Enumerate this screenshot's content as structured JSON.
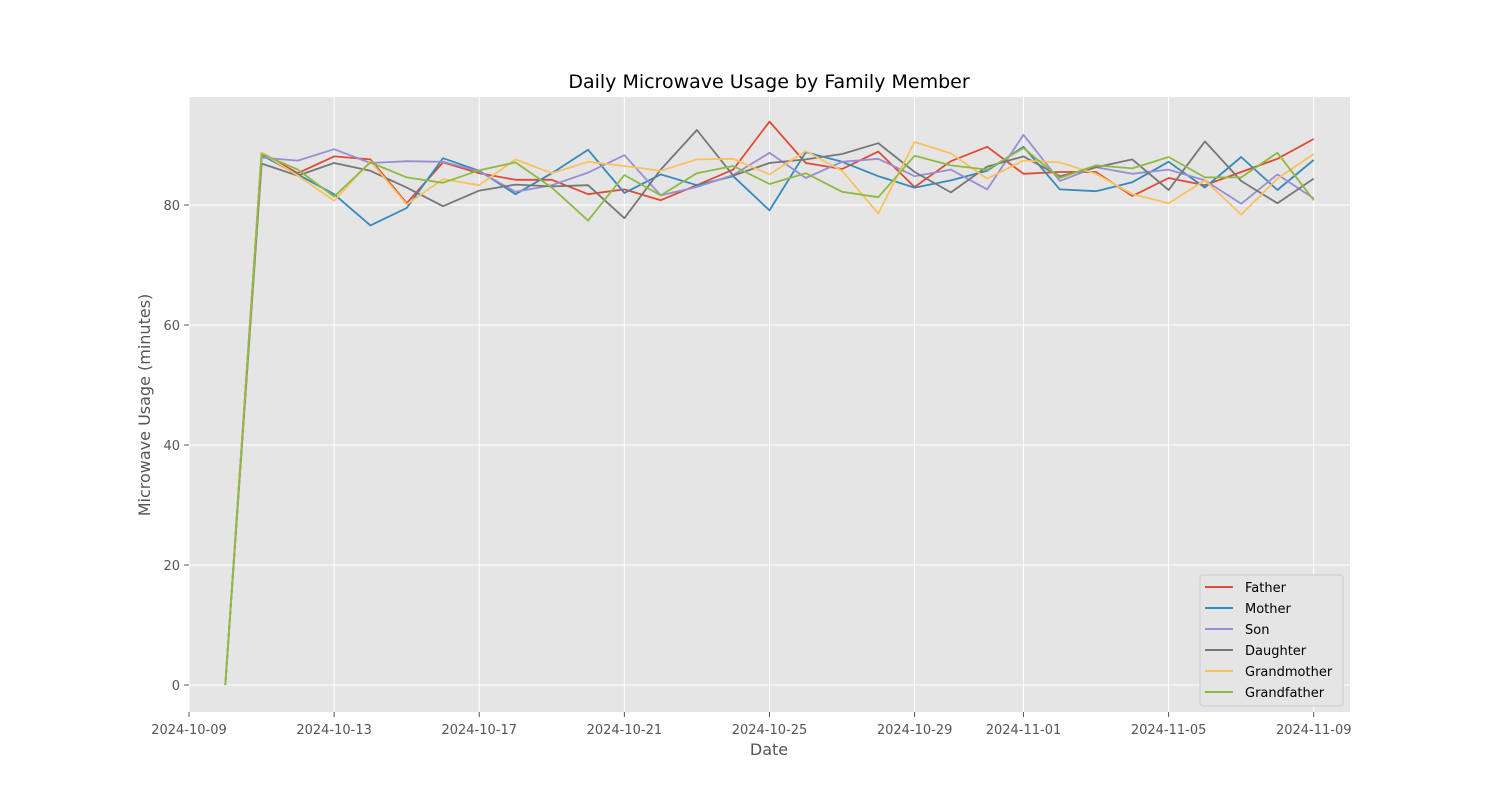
{
  "chart_data": {
    "type": "line",
    "title": "Daily Microwave Usage by Family Member",
    "xlabel": "Date",
    "ylabel": "Microwave Usage (minutes)",
    "xlim": [
      "2024-10-09",
      "2024-11-10"
    ],
    "ylim": [
      -4.5,
      98
    ],
    "x_ticks": [
      "2024-10-09",
      "2024-10-13",
      "2024-10-17",
      "2024-10-21",
      "2024-10-25",
      "2024-10-29",
      "2024-11-01",
      "2024-11-05",
      "2024-11-09"
    ],
    "y_ticks": [
      0,
      20,
      40,
      60,
      80
    ],
    "grid": true,
    "legend_position": "lower right",
    "x": [
      "2024-10-10",
      "2024-10-11",
      "2024-10-12",
      "2024-10-13",
      "2024-10-14",
      "2024-10-15",
      "2024-10-16",
      "2024-10-17",
      "2024-10-18",
      "2024-10-19",
      "2024-10-20",
      "2024-10-21",
      "2024-10-22",
      "2024-10-23",
      "2024-10-24",
      "2024-10-25",
      "2024-10-26",
      "2024-10-27",
      "2024-10-28",
      "2024-10-29",
      "2024-10-30",
      "2024-10-31",
      "2024-11-01",
      "2024-11-02",
      "2024-11-03",
      "2024-11-04",
      "2024-11-05",
      "2024-11-06",
      "2024-11-07",
      "2024-11-08",
      "2024-11-09"
    ],
    "series": [
      {
        "name": "Father",
        "color": "#E24A33",
        "values": [
          0,
          88.7,
          85.3,
          88.1,
          87.6,
          80.3,
          87.1,
          85.3,
          84.2,
          84.2,
          81.8,
          82.6,
          80.8,
          83.3,
          85.9,
          93.9,
          87,
          86,
          88.9,
          83,
          87.3,
          89.7,
          85.2,
          85.5,
          85.5,
          81.5,
          84.5,
          83.3,
          85.5,
          87.7,
          91
        ]
      },
      {
        "name": "Mother",
        "color": "#348ABD",
        "values": [
          0,
          88.3,
          85.1,
          81.8,
          76.6,
          79.5,
          87.8,
          85.7,
          81.8,
          85.3,
          89.2,
          82,
          85.1,
          83.3,
          84.8,
          79.1,
          88.8,
          87.2,
          84.8,
          82.9,
          84.1,
          85.7,
          89.7,
          82.6,
          82.3,
          83.8,
          87.2,
          82.9,
          88,
          82.5,
          87.5
        ]
      },
      {
        "name": "Son",
        "color": "#988ED5",
        "values": [
          0,
          87.9,
          87.4,
          89.3,
          87,
          87.3,
          87.2,
          85.6,
          82.2,
          83.3,
          85.4,
          88.3,
          81.6,
          83,
          85,
          88.7,
          84.5,
          87.2,
          87.7,
          84.8,
          85.9,
          82.6,
          91.7,
          84,
          86.3,
          85.2,
          85.9,
          84.1,
          80.2,
          85.1,
          81.1
        ]
      },
      {
        "name": "Daughter",
        "color": "#777777",
        "values": [
          0,
          86.9,
          84.9,
          87,
          85.7,
          82.9,
          79.8,
          82.4,
          83.4,
          83.1,
          83.3,
          77.8,
          85.9,
          92.5,
          84.9,
          87,
          87.6,
          88.5,
          90.3,
          85.5,
          82.1,
          86.4,
          88.1,
          84.8,
          86.3,
          87.6,
          82.5,
          90.6,
          84,
          80.3,
          84.4
        ]
      },
      {
        "name": "Grandmother",
        "color": "#FBC15E",
        "values": [
          0,
          88.7,
          84.9,
          80.7,
          87.3,
          80.1,
          84.3,
          83.3,
          87.6,
          85.3,
          87.2,
          86.5,
          85.7,
          87.6,
          87.7,
          85.1,
          89,
          85.7,
          78.6,
          90.5,
          88.6,
          84.4,
          87.4,
          87.1,
          85.2,
          81.8,
          80.3,
          84.1,
          78.4,
          84.4,
          88.5
        ]
      },
      {
        "name": "Grandfather",
        "color": "#8EBA42",
        "values": [
          0,
          88.5,
          85.9,
          81.4,
          87.1,
          84.6,
          83.7,
          85.8,
          87.1,
          82.9,
          77.4,
          85,
          81.6,
          85.3,
          86.5,
          83.5,
          85.3,
          82.2,
          81.3,
          88.2,
          86.6,
          85.9,
          89.5,
          84.5,
          86.6,
          86.1,
          88,
          84.6,
          84.6,
          88.7,
          80.8
        ]
      }
    ]
  }
}
